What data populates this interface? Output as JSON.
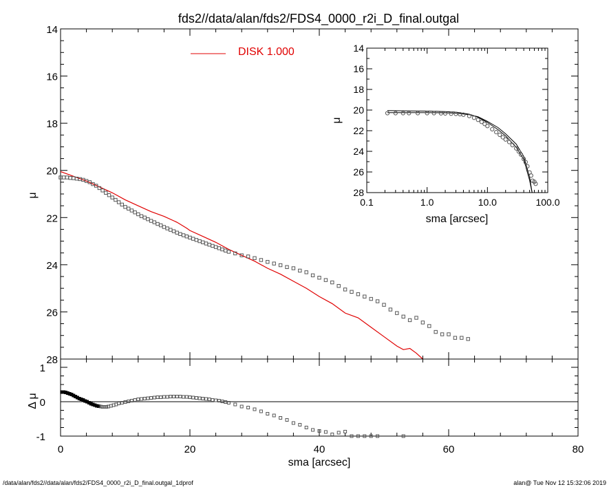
{
  "title": "fds2//data/alan/fds2/FDS4_0000_r2i_D_final.outgal",
  "footer_left": "/data/alan/fds2//data/alan/fds2/FDS4_0000_r2i_D_final.outgal_1dprof",
  "footer_right": "alan@  Tue Nov 12 15:32:06 2019",
  "colors": {
    "model": "#e00000",
    "data": "#555555",
    "axes": "#000000"
  },
  "chart_data": [
    {
      "type": "scatter",
      "panel": "main",
      "xlabel": "sma [arcsec]",
      "ylabel": "μ",
      "xlim": [
        0,
        80
      ],
      "ylim": [
        28,
        14
      ],
      "x_ticks": [
        "0",
        "20",
        "40",
        "60",
        "80"
      ],
      "y_ticks": [
        "14",
        "16",
        "18",
        "20",
        "22",
        "24",
        "26",
        "28"
      ],
      "legend": {
        "label": "DISK  1.000",
        "placement": "top-left"
      },
      "series": [
        {
          "name": "DISK  1.000",
          "kind": "line",
          "x": [
            0,
            2,
            4,
            6,
            8,
            10,
            12,
            14,
            16,
            18,
            19.5,
            20,
            22,
            24,
            26,
            28,
            30,
            32,
            34,
            36,
            38,
            40,
            42,
            44,
            46,
            48,
            50,
            52,
            53,
            54,
            55,
            56
          ],
          "y": [
            20.05,
            20.25,
            20.45,
            20.7,
            20.95,
            21.25,
            21.5,
            21.75,
            21.95,
            22.2,
            22.45,
            22.55,
            22.8,
            23.05,
            23.35,
            23.6,
            23.85,
            24.15,
            24.4,
            24.7,
            25.0,
            25.35,
            25.65,
            26.05,
            26.25,
            26.65,
            27.05,
            27.45,
            27.6,
            27.55,
            27.75,
            28.0
          ]
        },
        {
          "kind": "markers",
          "x": [
            0,
            0.5,
            1,
            1.5,
            2,
            2.5,
            3,
            3.5,
            4,
            4.5,
            5,
            5.5,
            6,
            6.5,
            7,
            7.5,
            8,
            8.5,
            9,
            9.5,
            10,
            10.5,
            11,
            11.5,
            12,
            12.5,
            13,
            13.5,
            14,
            14.5,
            15,
            15.5,
            16,
            16.5,
            17,
            17.5,
            18,
            18.5,
            19,
            19.5,
            20,
            20.5,
            21,
            21.5,
            22,
            22.5,
            23,
            23.5,
            24,
            24.5,
            25,
            25.5,
            26,
            27,
            28,
            29,
            30,
            31,
            32,
            33,
            34,
            35,
            36,
            37,
            38,
            39,
            40,
            41,
            42,
            43,
            44,
            45,
            46,
            47,
            48,
            49,
            50,
            51,
            52,
            53,
            54,
            55,
            56,
            57,
            58,
            59,
            60,
            61,
            62,
            63
          ],
          "y": [
            20.3,
            20.3,
            20.3,
            20.32,
            20.33,
            20.35,
            20.37,
            20.4,
            20.45,
            20.5,
            20.58,
            20.65,
            20.75,
            20.85,
            20.95,
            21.05,
            21.15,
            21.25,
            21.35,
            21.45,
            21.55,
            21.62,
            21.7,
            21.78,
            21.86,
            21.94,
            22.0,
            22.07,
            22.14,
            22.2,
            22.27,
            22.33,
            22.4,
            22.46,
            22.52,
            22.58,
            22.64,
            22.7,
            22.75,
            22.8,
            22.85,
            22.9,
            22.95,
            23.0,
            23.05,
            23.1,
            23.15,
            23.2,
            23.25,
            23.3,
            23.35,
            23.4,
            23.45,
            23.52,
            23.6,
            23.65,
            23.72,
            23.8,
            23.88,
            23.95,
            24.02,
            24.1,
            24.15,
            24.25,
            24.32,
            24.45,
            24.55,
            24.65,
            24.75,
            24.9,
            25.05,
            25.15,
            25.25,
            25.35,
            25.45,
            25.55,
            25.7,
            25.9,
            26.05,
            26.2,
            26.35,
            26.25,
            26.45,
            26.6,
            26.85,
            26.95,
            26.95,
            27.1,
            27.1,
            27.15
          ]
        }
      ]
    },
    {
      "type": "scatter",
      "panel": "inset",
      "xlabel": "sma [arcsec]",
      "ylabel": "μ",
      "x_scale": "log",
      "xlim": [
        0.1,
        100
      ],
      "ylim": [
        28,
        14
      ],
      "x_ticks": [
        "0.1",
        "1.0",
        "10.0",
        "100.0"
      ],
      "y_ticks": [
        "14",
        "16",
        "18",
        "20",
        "22",
        "24",
        "26",
        "28"
      ],
      "series": [
        {
          "kind": "line",
          "x": [
            0.22,
            0.5,
            1,
            2,
            3,
            5,
            7,
            10,
            15,
            20,
            30,
            40,
            50,
            55
          ],
          "y": [
            20.25,
            20.25,
            20.25,
            20.27,
            20.3,
            20.45,
            20.65,
            21.1,
            21.7,
            22.3,
            23.3,
            24.5,
            26.5,
            28.0
          ]
        },
        {
          "kind": "line",
          "x": [
            0.22,
            0.5,
            1,
            2,
            3,
            5,
            7,
            10,
            15,
            20,
            30,
            40,
            50,
            55
          ],
          "y": [
            20.05,
            20.08,
            20.1,
            20.15,
            20.2,
            20.4,
            20.7,
            21.2,
            21.9,
            22.5,
            23.6,
            24.8,
            26.8,
            28.0
          ]
        },
        {
          "kind": "markers",
          "x": [
            0.22,
            0.3,
            0.4,
            0.5,
            0.7,
            1,
            1.3,
            1.7,
            2,
            2.5,
            3,
            3.5,
            4,
            5,
            6,
            7,
            8,
            9,
            10,
            12,
            14,
            16,
            18,
            20,
            23,
            26,
            30,
            33,
            36,
            40,
            43,
            46,
            50,
            53,
            56,
            60,
            63
          ],
          "y": [
            20.3,
            20.3,
            20.3,
            20.3,
            20.3,
            20.3,
            20.3,
            20.32,
            20.33,
            20.35,
            20.37,
            20.4,
            20.45,
            20.58,
            20.75,
            20.95,
            21.15,
            21.35,
            21.55,
            21.86,
            22.14,
            22.4,
            22.64,
            22.85,
            23.1,
            23.4,
            23.72,
            24.02,
            24.32,
            24.75,
            25.05,
            25.45,
            26.05,
            26.35,
            26.85,
            26.95,
            27.15
          ]
        }
      ]
    },
    {
      "type": "scatter",
      "panel": "residual",
      "xlabel": "sma [arcsec]",
      "ylabel": "Δ μ",
      "xlim": [
        0,
        80
      ],
      "ylim": [
        -1,
        1
      ],
      "x_ticks": [
        "0",
        "20",
        "40",
        "60",
        "80"
      ],
      "y_ticks": [
        "-1",
        "0",
        "1"
      ],
      "zero_line": true,
      "series": [
        {
          "kind": "markers",
          "x": [
            0.2,
            0.5,
            0.8,
            1.1,
            1.4,
            1.7,
            2,
            2.3,
            2.6,
            2.9,
            3.2,
            3.5,
            3.8,
            4.1,
            4.4,
            4.7,
            5,
            5.3,
            5.6,
            5.9,
            6.2,
            6.5,
            6.8,
            7.1,
            7.4,
            7.8,
            8.2,
            8.6,
            9,
            9.5,
            10,
            10.5,
            11,
            11.5,
            12,
            12.5,
            13,
            13.5,
            14,
            14.5,
            15,
            15.5,
            16,
            16.5,
            17,
            17.5,
            18,
            18.5,
            19,
            19.5,
            20,
            20.5,
            21,
            21.5,
            22,
            22.5,
            23,
            23.5,
            24,
            24.5,
            25,
            25.5,
            26,
            27,
            28,
            29,
            30,
            31,
            32,
            33,
            34,
            35,
            36,
            37,
            38,
            39,
            40,
            41,
            42,
            43,
            44,
            45,
            46,
            47,
            48,
            49,
            53
          ],
          "y": [
            0.28,
            0.28,
            0.27,
            0.25,
            0.23,
            0.21,
            0.18,
            0.15,
            0.12,
            0.09,
            0.07,
            0.05,
            0.02,
            0.0,
            -0.03,
            -0.06,
            -0.08,
            -0.1,
            -0.12,
            -0.13,
            -0.14,
            -0.15,
            -0.15,
            -0.15,
            -0.14,
            -0.12,
            -0.1,
            -0.08,
            -0.05,
            -0.03,
            -0.01,
            0.01,
            0.03,
            0.05,
            0.07,
            0.08,
            0.09,
            0.1,
            0.11,
            0.12,
            0.13,
            0.13,
            0.14,
            0.14,
            0.15,
            0.15,
            0.15,
            0.15,
            0.14,
            0.14,
            0.13,
            0.12,
            0.11,
            0.1,
            0.09,
            0.08,
            0.07,
            0.05,
            0.04,
            0.03,
            0.01,
            -0.01,
            -0.03,
            -0.08,
            -0.14,
            -0.17,
            -0.22,
            -0.28,
            -0.35,
            -0.4,
            -0.47,
            -0.53,
            -0.62,
            -0.67,
            -0.75,
            -0.82,
            -0.85,
            -0.88,
            -0.95,
            -0.9,
            -0.87,
            -1.0,
            -1.0,
            -1.0,
            -1.0,
            -1.0,
            -1.0
          ]
        }
      ]
    }
  ]
}
